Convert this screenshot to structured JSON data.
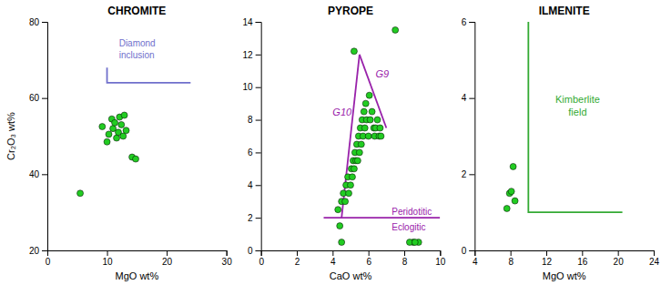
{
  "chart_data": [
    {
      "type": "scatter",
      "title": "CHROMITE",
      "xlabel": "MgO wt%",
      "ylabel": "Cr₂O₃ wt%",
      "xlim": [
        0,
        30
      ],
      "ylim": [
        20,
        80
      ],
      "xticks": [
        0,
        10,
        20,
        30
      ],
      "yticks": [
        20,
        40,
        60,
        80
      ],
      "series": [
        {
          "type": "scatter",
          "marker": "circle",
          "color": "#22cc22",
          "x": [
            5.5,
            9.2,
            10.0,
            10.3,
            10.8,
            11.0,
            11.3,
            11.6,
            11.9,
            12.1,
            12.4,
            12.7,
            12.9,
            13.2,
            14.2,
            14.8
          ],
          "values": [
            35.0,
            52.5,
            48.5,
            50.5,
            54.5,
            52.0,
            53.5,
            49.5,
            51.0,
            55.0,
            53.0,
            50.0,
            55.5,
            51.5,
            44.5,
            44.0
          ]
        },
        {
          "type": "line",
          "color": "#7070cc",
          "x": [
            10.0,
            10.0,
            24.0
          ],
          "values": [
            68.0,
            64.0,
            64.0
          ]
        }
      ],
      "annotations": [
        {
          "text": "Diamond\ninclusion",
          "x": 12.0,
          "y": 70.5,
          "color": "#7070cc"
        }
      ]
    },
    {
      "type": "scatter",
      "title": "PYROPE",
      "xlabel": "CaO wt%",
      "xlim": [
        0,
        10
      ],
      "ylim": [
        0,
        14
      ],
      "xticks": [
        0,
        2,
        4,
        6,
        8,
        10
      ],
      "yticks": [
        0,
        2,
        4,
        6,
        8,
        10,
        12,
        14
      ],
      "series": [
        {
          "type": "scatter",
          "marker": "circle",
          "color": "#22cc22",
          "x": [
            4.3,
            4.5,
            4.6,
            4.7,
            4.75,
            4.85,
            4.9,
            5.0,
            5.05,
            5.1,
            5.15,
            5.2,
            5.25,
            5.3,
            5.35,
            5.4,
            5.45,
            5.5,
            5.55,
            5.6,
            5.65,
            5.7,
            5.75,
            5.8,
            5.85,
            5.9,
            6.0,
            6.05,
            6.1,
            6.2,
            6.3,
            6.35,
            6.4,
            6.5,
            6.6,
            6.65,
            6.7,
            7.5,
            4.4,
            4.5,
            8.5,
            8.8,
            5.2,
            8.3,
            8.6
          ],
          "values": [
            2.5,
            3.0,
            3.5,
            3.0,
            4.0,
            4.5,
            3.5,
            4.0,
            5.0,
            4.5,
            5.5,
            5.0,
            6.0,
            5.5,
            6.5,
            5.5,
            7.0,
            6.0,
            7.5,
            6.5,
            8.0,
            7.0,
            8.5,
            7.5,
            9.0,
            8.0,
            7.0,
            9.5,
            8.0,
            8.5,
            7.5,
            7.0,
            7.5,
            8.0,
            7.0,
            7.5,
            7.0,
            13.5,
            1.5,
            0.5,
            0.5,
            0.5,
            12.2,
            0.5,
            0.5
          ]
        },
        {
          "type": "line",
          "color": "#9922aa",
          "x": [
            4.5,
            5.5
          ],
          "values": [
            2.0,
            12.0
          ]
        },
        {
          "type": "line",
          "color": "#9922aa",
          "x": [
            5.5,
            7.0
          ],
          "values": [
            12.0,
            7.5
          ]
        },
        {
          "type": "line",
          "color": "#9922aa",
          "x": [
            3.5,
            10.0
          ],
          "values": [
            2.0,
            2.0
          ]
        }
      ],
      "annotations": [
        {
          "text": "G10",
          "x": 4.0,
          "y": 8.5,
          "color": "#9922aa"
        },
        {
          "text": "G9",
          "x": 6.4,
          "y": 10.8,
          "color": "#9922aa"
        },
        {
          "text": "Peridotitic",
          "x": 7.3,
          "y": 2.2,
          "color": "#9922aa"
        },
        {
          "text": "Eclogitic",
          "x": 7.3,
          "y": 1.6,
          "color": "#9922aa"
        }
      ]
    },
    {
      "type": "scatter",
      "title": "ILMENITE",
      "xlabel": "MgO wt%",
      "xlim": [
        4,
        24
      ],
      "ylim": [
        0,
        6
      ],
      "xticks": [
        4,
        8,
        12,
        16,
        20,
        24
      ],
      "yticks": [
        0,
        2,
        4,
        6
      ],
      "series": [
        {
          "type": "scatter",
          "marker": "circle",
          "color": "#22cc22",
          "x": [
            7.6,
            7.9,
            8.1,
            8.3,
            8.5
          ],
          "values": [
            1.1,
            1.5,
            1.55,
            2.2,
            1.3
          ]
        },
        {
          "type": "line",
          "color": "#33aa33",
          "x": [
            10.0,
            10.0,
            20.5
          ],
          "values": [
            6.0,
            1.0,
            1.0
          ]
        }
      ],
      "annotations": [
        {
          "text": "Kimberlite\nfield",
          "x": 15.5,
          "y": 3.8,
          "color": "#33aa33"
        }
      ]
    }
  ]
}
